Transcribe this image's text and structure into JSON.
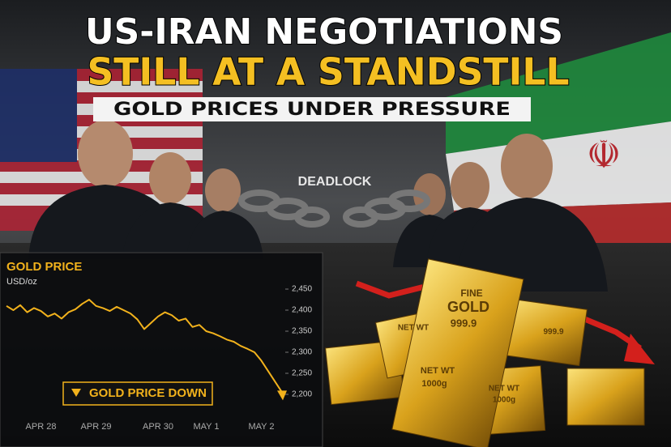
{
  "header": {
    "title_line1": "US-IRAN NEGOTIATIONS",
    "title_line2": "STILL AT A STANDSTILL",
    "subtitle": "GOLD PRICES UNDER PRESSURE"
  },
  "scene": {
    "label": "DEADLOCK",
    "bar_texts": [
      "FINE",
      "GOLD",
      "999.9",
      "NET WT",
      "1000g",
      "NET WT",
      "999.9",
      "NET WT",
      "1000g"
    ]
  },
  "chart_data": {
    "type": "line",
    "title": "GOLD PRICE",
    "y_label": "USD/oz",
    "annotation": "GOLD PRICE DOWN",
    "color": "#f2b21c",
    "categories": [
      null,
      null,
      null,
      null,
      null,
      "APR 28",
      null,
      null,
      null,
      null,
      null,
      null,
      null,
      "APR 29",
      null,
      null,
      null,
      null,
      null,
      null,
      null,
      null,
      "APR 30",
      null,
      null,
      null,
      null,
      null,
      null,
      "MAY 1",
      null,
      null,
      null,
      null,
      null,
      null,
      null,
      "MAY 2",
      null,
      null,
      null
    ],
    "values": [
      2410,
      2400,
      2412,
      2395,
      2405,
      2398,
      2385,
      2392,
      2380,
      2395,
      2402,
      2415,
      2425,
      2410,
      2405,
      2398,
      2408,
      2400,
      2392,
      2378,
      2355,
      2370,
      2385,
      2395,
      2388,
      2375,
      2380,
      2360,
      2365,
      2350,
      2345,
      2338,
      2330,
      2325,
      2315,
      2308,
      2300,
      2280,
      2255,
      2230,
      2205
    ],
    "ylim": [
      2180,
      2470
    ],
    "yticks": [
      {
        "value": 2450,
        "label": "2,450"
      },
      {
        "value": 2400,
        "label": "2,400"
      },
      {
        "value": 2350,
        "label": "2,350"
      },
      {
        "value": 2300,
        "label": "2,300"
      },
      {
        "value": 2250,
        "label": "2,250"
      },
      {
        "value": 2200,
        "label": "2,200"
      }
    ]
  }
}
